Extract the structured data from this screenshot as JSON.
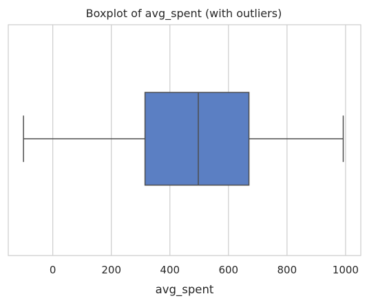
{
  "chart_data": {
    "type": "boxplot",
    "title": "Boxplot of avg_spent (with outliers)",
    "xlabel": "avg_spent",
    "ylabel": "",
    "orientation": "horizontal",
    "xlim": [
      -152,
      1052
    ],
    "x_ticks": [
      0,
      200,
      400,
      600,
      800,
      1000
    ],
    "grid": true,
    "box": {
      "whisker_low": -100,
      "q1": 315,
      "median": 497,
      "q3": 670,
      "whisker_high": 992
    },
    "colors": {
      "box_fill": "#5b7fc3",
      "lines": "#4d4d4d",
      "grid": "#cccccc",
      "frame": "#cccccc"
    }
  }
}
